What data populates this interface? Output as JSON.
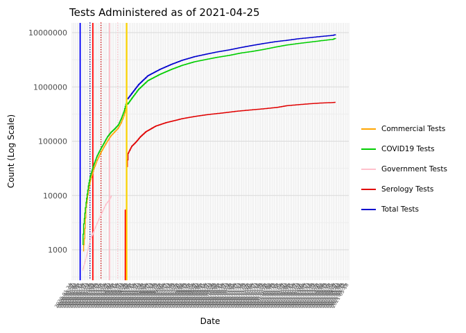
{
  "figure": {
    "title": "Tests Administered as of 2021-04-25"
  },
  "y_axis": {
    "label": "Count (Log Scale)",
    "ticks": [
      {
        "value": 1000,
        "label": "1000"
      },
      {
        "value": 10000,
        "label": "10000"
      },
      {
        "value": 100000,
        "label": "100000"
      },
      {
        "value": 1000000,
        "label": "1000000"
      },
      {
        "value": 10000000,
        "label": "10000000"
      }
    ]
  },
  "x_axis": {
    "label": "Date"
  },
  "legend": {
    "items": [
      {
        "label": "Commercial Tests",
        "color": "#FFA500"
      },
      {
        "label": "COVID19 Tests",
        "color": "#00CD00"
      },
      {
        "label": "Government Tests",
        "color": "#FFC0CB"
      },
      {
        "label": "Serology Tests",
        "color": "#E00000"
      },
      {
        "label": "Total Tests",
        "color": "#0000CD"
      }
    ]
  },
  "chart_data": {
    "type": "line",
    "title": "Tests Administered as of 2021-04-25",
    "xlabel": "Date",
    "ylabel": "Count (Log Scale)",
    "y_scale": "log10",
    "grid": true,
    "legend_position": "right",
    "ylim_log10": [
      2.44,
      7.18
    ],
    "y_major_ticks": [
      1000,
      10000,
      100000,
      1000000,
      10000000
    ],
    "y_minor_ticks_log10": [
      2.5,
      3.5,
      4.5,
      5.5,
      6.5
    ],
    "x_axis": {
      "start_date": "2020-01-24",
      "days": 480,
      "tick_every_days": 3,
      "last_data_day": 457,
      "tick_label_format": "YYYY-MM-DD"
    },
    "vlines": [
      {
        "day": 14,
        "color": "#0000FF",
        "style": "solid",
        "width": 1.8,
        "on_top": false
      },
      {
        "day": 31,
        "color": "#00008B",
        "style": "dotted",
        "width": 1.5,
        "on_top": false
      },
      {
        "day": 36,
        "color": "#FF0000",
        "style": "solid",
        "width": 1.8,
        "on_top": false
      },
      {
        "day": 50,
        "color": "#CC0000",
        "style": "dotted",
        "width": 1.5,
        "on_top": false
      },
      {
        "day": 65,
        "color": "#FFB6C1",
        "style": "solid",
        "width": 1.5,
        "on_top": false
      },
      {
        "day": 79,
        "color": "#FFC0CB",
        "style": "dotted",
        "width": 1.5,
        "on_top": false
      },
      {
        "day": 94.5,
        "color": "#FFD700",
        "style": "solid",
        "width": 2.2,
        "on_top": true
      }
    ],
    "segments": [
      {
        "name": "serology-jump",
        "color": "#FF0000",
        "width": 2.2,
        "day": 92.5,
        "from": 270,
        "to": 5500
      }
    ],
    "series": [
      {
        "name": "Government Tests",
        "color": "#FFC0CB",
        "width": 1.2,
        "points": [
          [
            18,
            420
          ],
          [
            25,
            800
          ],
          [
            31,
            1500
          ],
          [
            40,
            2600
          ],
          [
            50,
            4500
          ],
          [
            58,
            6800
          ],
          [
            65,
            8500
          ],
          [
            68,
            10000
          ]
        ]
      },
      {
        "name": "Commercial Tests",
        "color": "#FFA500",
        "width": 1.3,
        "points": [
          [
            19,
            950
          ],
          [
            21,
            1600
          ],
          [
            24,
            6000
          ],
          [
            28,
            12000
          ],
          [
            31,
            18000
          ],
          [
            37,
            30000
          ],
          [
            43,
            44000
          ],
          [
            49,
            60000
          ],
          [
            55,
            78000
          ],
          [
            61,
            100000
          ],
          [
            67,
            125000
          ],
          [
            74,
            150000
          ],
          [
            80,
            175000
          ],
          [
            85,
            220000
          ],
          [
            90,
            300000
          ],
          [
            93,
            400000
          ],
          [
            94,
            450000
          ]
        ]
      },
      {
        "name": "COVID19 Tests",
        "color": "#00CD00",
        "width": 1.4,
        "points": [
          [
            18,
            1250
          ],
          [
            20,
            3000
          ],
          [
            24,
            7500
          ],
          [
            28,
            15000
          ],
          [
            31,
            22000
          ],
          [
            37,
            36000
          ],
          [
            43,
            53000
          ],
          [
            49,
            71000
          ],
          [
            55,
            92000
          ],
          [
            61,
            120000
          ],
          [
            67,
            145000
          ],
          [
            74,
            170000
          ],
          [
            80,
            200000
          ],
          [
            85,
            260000
          ],
          [
            90,
            360000
          ],
          [
            93,
            480000
          ],
          [
            94,
            520000
          ],
          [
            96,
            480000
          ],
          [
            105,
            650000
          ],
          [
            115,
            900000
          ],
          [
            131,
            1300000
          ],
          [
            152,
            1700000
          ],
          [
            172,
            2100000
          ],
          [
            191,
            2500000
          ],
          [
            212,
            2900000
          ],
          [
            232,
            3200000
          ],
          [
            251,
            3500000
          ],
          [
            272,
            3800000
          ],
          [
            292,
            4200000
          ],
          [
            312,
            4500000
          ],
          [
            332,
            4900000
          ],
          [
            352,
            5400000
          ],
          [
            372,
            5900000
          ],
          [
            392,
            6300000
          ],
          [
            413,
            6700000
          ],
          [
            432,
            7100000
          ],
          [
            452,
            7500000
          ],
          [
            457,
            7900000
          ]
        ]
      },
      {
        "name": "Serology Tests",
        "color": "#E00000",
        "width": 1.4,
        "points": [
          [
            95,
            34000
          ],
          [
            97,
            60000
          ],
          [
            103,
            80000
          ],
          [
            110,
            95000
          ],
          [
            118,
            120000
          ],
          [
            128,
            150000
          ],
          [
            145,
            190000
          ],
          [
            163,
            220000
          ],
          [
            191,
            260000
          ],
          [
            212,
            285000
          ],
          [
            236,
            310000
          ],
          [
            260,
            330000
          ],
          [
            284,
            355000
          ],
          [
            308,
            375000
          ],
          [
            332,
            395000
          ],
          [
            356,
            420000
          ],
          [
            372,
            450000
          ],
          [
            392,
            470000
          ],
          [
            413,
            490000
          ],
          [
            432,
            505000
          ],
          [
            452,
            515000
          ],
          [
            457,
            520000
          ]
        ]
      },
      {
        "name": "Total Tests",
        "color": "#0000CD",
        "width": 1.4,
        "points": [
          [
            96,
            600000
          ],
          [
            105,
            800000
          ],
          [
            115,
            1100000
          ],
          [
            131,
            1600000
          ],
          [
            152,
            2100000
          ],
          [
            172,
            2600000
          ],
          [
            191,
            3100000
          ],
          [
            212,
            3600000
          ],
          [
            232,
            4000000
          ],
          [
            251,
            4400000
          ],
          [
            272,
            4800000
          ],
          [
            292,
            5300000
          ],
          [
            312,
            5800000
          ],
          [
            332,
            6300000
          ],
          [
            352,
            6800000
          ],
          [
            372,
            7200000
          ],
          [
            392,
            7700000
          ],
          [
            413,
            8100000
          ],
          [
            432,
            8500000
          ],
          [
            452,
            8900000
          ],
          [
            457,
            9200000
          ]
        ]
      }
    ]
  }
}
